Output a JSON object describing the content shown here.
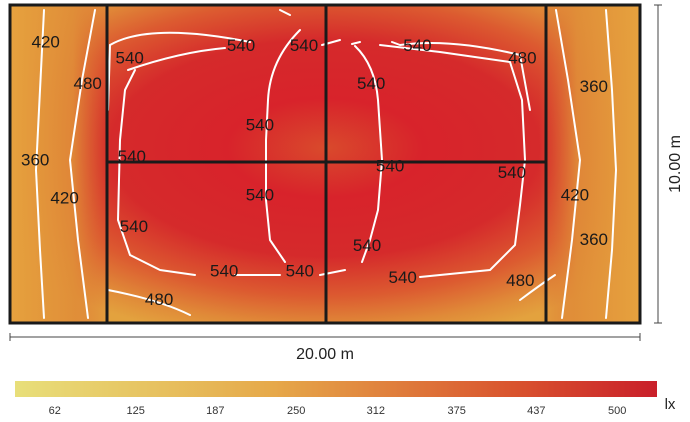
{
  "chart_data": {
    "type": "heatmap",
    "subtype": "isolux-contour",
    "unit": "lx",
    "width_label": "20.00 m",
    "height_label": "10.00 m",
    "room_dimensions_m": [
      20,
      10
    ],
    "grid_divisions": {
      "x_dividers_m": [
        4.5,
        14.5
      ],
      "center_x_m": 10,
      "center_y_m": 5
    },
    "colorbar": {
      "ticks": [
        62,
        125,
        187,
        250,
        312,
        375,
        437,
        500
      ],
      "range": [
        31,
        531
      ],
      "colors": [
        "#e8df7a",
        "#e6a94a",
        "#d9532e",
        "#c91f2a"
      ]
    },
    "contour_labels": [
      {
        "text": "420",
        "x_m": 1.7,
        "y_m": 1.2
      },
      {
        "text": "480",
        "x_m": 3.7,
        "y_m": 2.5
      },
      {
        "text": "360",
        "x_m": 1.2,
        "y_m": 4.9
      },
      {
        "text": "420",
        "x_m": 2.6,
        "y_m": 6.1
      },
      {
        "text": "540",
        "x_m": 5.7,
        "y_m": 1.7
      },
      {
        "text": "540",
        "x_m": 11.0,
        "y_m": 1.3
      },
      {
        "text": "540",
        "x_m": 14.0,
        "y_m": 1.3
      },
      {
        "text": "540",
        "x_m": 19.4,
        "y_m": 1.3
      },
      {
        "text": "480",
        "x_m": 24.4,
        "y_m": 1.7
      },
      {
        "text": "540",
        "x_m": 17.2,
        "y_m": 2.5
      },
      {
        "text": "360",
        "x_m": 27.8,
        "y_m": 2.6
      },
      {
        "text": "540",
        "x_m": 11.9,
        "y_m": 3.8
      },
      {
        "text": "540",
        "x_m": 5.8,
        "y_m": 4.8
      },
      {
        "text": "540",
        "x_m": 18.1,
        "y_m": 5.1
      },
      {
        "text": "540",
        "x_m": 23.9,
        "y_m": 5.3
      },
      {
        "text": "540",
        "x_m": 11.9,
        "y_m": 6.0
      },
      {
        "text": "420",
        "x_m": 26.9,
        "y_m": 6.0
      },
      {
        "text": "540",
        "x_m": 5.9,
        "y_m": 7.0
      },
      {
        "text": "360",
        "x_m": 27.8,
        "y_m": 7.4
      },
      {
        "text": "540",
        "x_m": 17.0,
        "y_m": 7.6
      },
      {
        "text": "540",
        "x_m": 10.2,
        "y_m": 8.4
      },
      {
        "text": "540",
        "x_m": 13.8,
        "y_m": 8.4
      },
      {
        "text": "540",
        "x_m": 18.7,
        "y_m": 8.6
      },
      {
        "text": "480",
        "x_m": 24.3,
        "y_m": 8.7
      },
      {
        "text": "480",
        "x_m": 7.1,
        "y_m": 9.3
      }
    ]
  }
}
